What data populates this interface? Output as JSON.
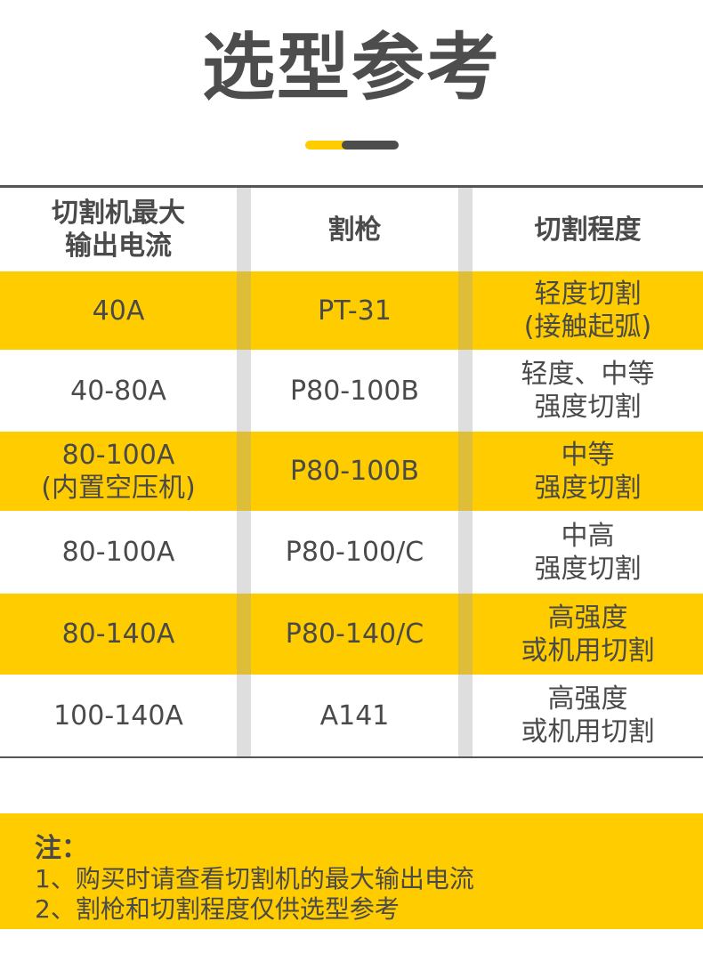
{
  "title": "选型参考",
  "accent_color": "#ffcc00",
  "text_color": "#4d4d4d",
  "table": {
    "headers": [
      "切割机最大\n输出电流",
      "割枪",
      "切割程度"
    ],
    "rows": [
      {
        "current": "40A",
        "torch": "PT-31",
        "level": "轻度切割\n(接触起弧)",
        "highlight": true
      },
      {
        "current": "40-80A",
        "torch": "P80-100B",
        "level": "轻度、中等\n强度切割",
        "highlight": false
      },
      {
        "current": "80-100A\n(内置空压机)",
        "torch": "P80-100B",
        "level": "中等\n强度切割",
        "highlight": true
      },
      {
        "current": "80-100A",
        "torch": "P80-100/C",
        "level": "中高\n强度切割",
        "highlight": false
      },
      {
        "current": "80-140A",
        "torch": "P80-140/C",
        "level": "高强度\n或机用切割",
        "highlight": true
      },
      {
        "current": "100-140A",
        "torch": "A141",
        "level": "高强度\n或机用切割",
        "highlight": false
      }
    ]
  },
  "note": {
    "title": "注：",
    "lines": [
      "1、购买时请查看切割机的最大输出电流",
      "2、割枪和切割程度仅供选型参考"
    ]
  }
}
